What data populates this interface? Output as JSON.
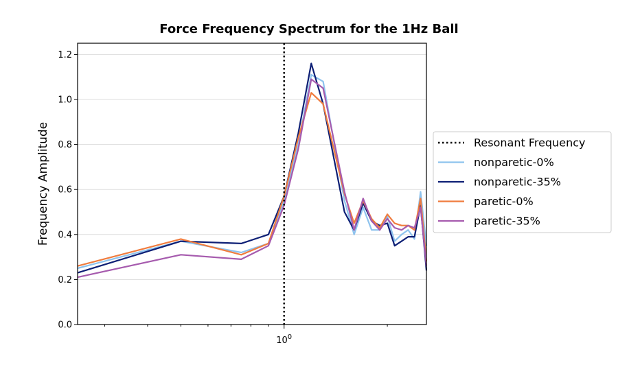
{
  "chart_data": {
    "type": "line",
    "title": "Force Frequency Spectrum for the 1Hz Ball",
    "xlabel": "",
    "ylabel": "Frequency Amplitude",
    "x_scale": "log",
    "xlim": [
      0.25,
      2.6
    ],
    "ylim": [
      0,
      1.25
    ],
    "y_ticks": [
      0.0,
      0.2,
      0.4,
      0.6,
      0.8,
      1.0,
      1.2
    ],
    "y_tick_labels": [
      "0.0",
      "0.2",
      "0.4",
      "0.6",
      "0.8",
      "1.0",
      "1.2"
    ],
    "x_major_ticks": [
      1.0
    ],
    "x_major_tick_labels": [
      "10^0"
    ],
    "x_minor_ticks": [
      0.3,
      0.4,
      0.5,
      0.6,
      0.7,
      0.8,
      0.9,
      2.0
    ],
    "grid": "horizontal",
    "legend_position": "right",
    "resonant_frequency": {
      "name": "Resonant Frequency",
      "x": 1.0,
      "color": "#000000",
      "style": "dotted"
    },
    "series": [
      {
        "name": "nonparetic-0%",
        "color": "#8ec3ee",
        "x": [
          0.25,
          0.5,
          0.75,
          0.9,
          1.0,
          1.1,
          1.2,
          1.3,
          1.5,
          1.6,
          1.7,
          1.8,
          1.9,
          2.0,
          2.1,
          2.2,
          2.3,
          2.4,
          2.5,
          2.6
        ],
        "y": [
          0.25,
          0.37,
          0.32,
          0.36,
          0.55,
          0.8,
          1.11,
          1.08,
          0.55,
          0.4,
          0.52,
          0.42,
          0.42,
          0.48,
          0.37,
          0.4,
          0.42,
          0.38,
          0.59,
          0.35
        ]
      },
      {
        "name": "nonparetic-35%",
        "color": "#0d1f75",
        "x": [
          0.25,
          0.5,
          0.75,
          0.9,
          1.0,
          1.1,
          1.2,
          1.3,
          1.5,
          1.6,
          1.7,
          1.8,
          1.9,
          2.0,
          2.1,
          2.2,
          2.3,
          2.4,
          2.5,
          2.6
        ],
        "y": [
          0.23,
          0.37,
          0.36,
          0.4,
          0.57,
          0.85,
          1.16,
          0.98,
          0.5,
          0.42,
          0.54,
          0.46,
          0.44,
          0.45,
          0.35,
          0.37,
          0.39,
          0.39,
          0.53,
          0.24
        ]
      },
      {
        "name": "paretic-0%",
        "color": "#f07c3e",
        "x": [
          0.25,
          0.5,
          0.75,
          0.9,
          1.0,
          1.1,
          1.2,
          1.3,
          1.5,
          1.6,
          1.7,
          1.8,
          1.9,
          2.0,
          2.1,
          2.2,
          2.3,
          2.4,
          2.5,
          2.6
        ],
        "y": [
          0.26,
          0.38,
          0.31,
          0.36,
          0.57,
          0.83,
          1.03,
          0.98,
          0.58,
          0.45,
          0.55,
          0.47,
          0.43,
          0.49,
          0.45,
          0.44,
          0.44,
          0.42,
          0.56,
          0.28
        ]
      },
      {
        "name": "paretic-35%",
        "color": "#a65bae",
        "x": [
          0.25,
          0.5,
          0.75,
          0.9,
          1.0,
          1.1,
          1.2,
          1.3,
          1.5,
          1.6,
          1.7,
          1.8,
          1.9,
          2.0,
          2.1,
          2.2,
          2.3,
          2.4,
          2.5,
          2.6
        ],
        "y": [
          0.21,
          0.31,
          0.29,
          0.35,
          0.53,
          0.78,
          1.09,
          1.05,
          0.59,
          0.42,
          0.56,
          0.46,
          0.42,
          0.47,
          0.43,
          0.42,
          0.44,
          0.43,
          0.52,
          0.26
        ]
      }
    ]
  }
}
